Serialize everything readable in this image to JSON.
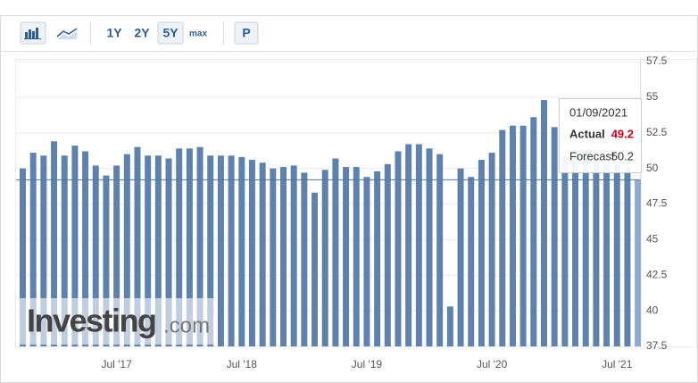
{
  "toolbar": {
    "buttons": [
      "1Y",
      "2Y",
      "5Y",
      "max",
      "P"
    ],
    "selected": 2
  },
  "chart_data": {
    "type": "bar",
    "color": "#5f82ad",
    "highlight_color": "#8eaacd",
    "categories": [
      null,
      null,
      null,
      null,
      null,
      null,
      null,
      null,
      null,
      "Jul '17",
      null,
      null,
      null,
      null,
      null,
      null,
      null,
      null,
      null,
      null,
      null,
      "Jul '18",
      null,
      null,
      null,
      null,
      null,
      null,
      null,
      null,
      null,
      null,
      null,
      "Jul '19",
      null,
      null,
      null,
      null,
      null,
      null,
      null,
      null,
      null,
      null,
      null,
      "Jul '20",
      null,
      null,
      null,
      null,
      null,
      null,
      null,
      null,
      null,
      null,
      null,
      "Jul '21",
      null,
      null
    ],
    "values": [
      50.0,
      51.1,
      50.9,
      51.9,
      50.9,
      51.6,
      51.2,
      50.2,
      49.5,
      50.2,
      51.0,
      51.5,
      50.9,
      50.9,
      50.7,
      51.4,
      51.4,
      51.5,
      50.9,
      50.9,
      50.9,
      50.8,
      50.6,
      50.4,
      50.0,
      50.1,
      50.2,
      49.7,
      48.3,
      49.9,
      50.7,
      50.1,
      50.1,
      49.4,
      49.8,
      50.3,
      51.2,
      51.7,
      51.7,
      51.4,
      51.0,
      40.3,
      50.0,
      49.4,
      50.6,
      51.1,
      52.7,
      53.0,
      53.0,
      53.6,
      54.8,
      52.9,
      50.9,
      51.3,
      51.3,
      51.0,
      50.3,
      50.3,
      50.1,
      49.2
    ],
    "ylim": [
      37.5,
      57.5
    ],
    "yticks": [
      37.5,
      40,
      42.5,
      45,
      47.5,
      50,
      52.5,
      55,
      57.5
    ],
    "grid": true
  },
  "tooltip": {
    "date": "01/09/2021",
    "actual_label": "Actual",
    "actual": 49.2,
    "forecast_label": "Forecast",
    "forecast": 50.2
  },
  "watermark": {
    "brand": "Investing",
    "suffix": ".com"
  }
}
